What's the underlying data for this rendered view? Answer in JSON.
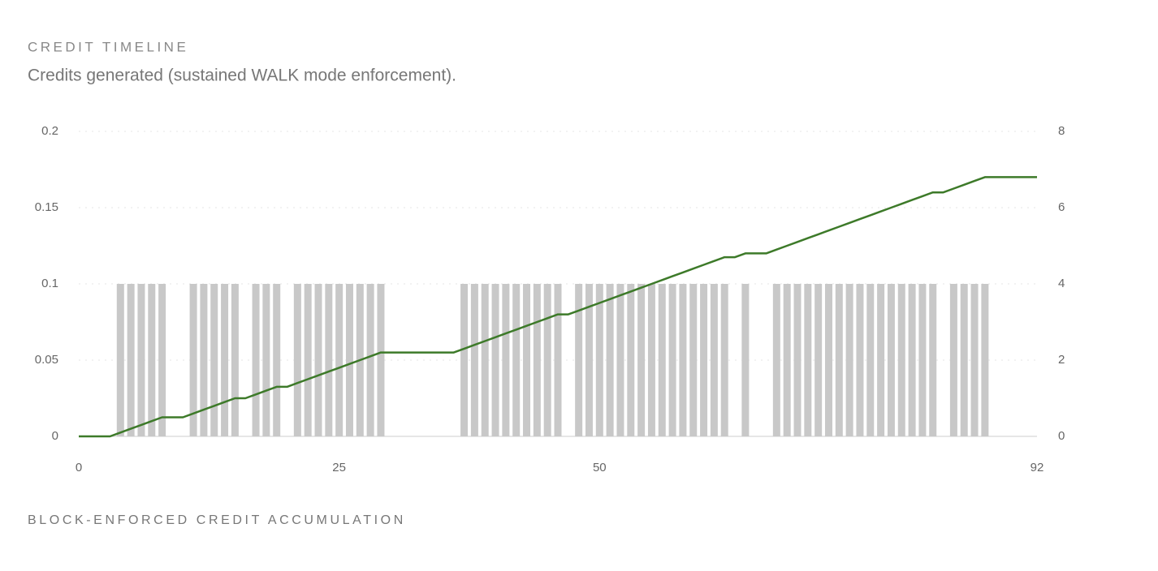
{
  "chart_data": {
    "type": "bar_line",
    "title": "CREDIT TIMELINE",
    "subtitle": "Credits generated (sustained WALK mode enforcement).",
    "caption": "BLOCK-ENFORCED CREDIT ACCUMULATION",
    "x": [
      0,
      1,
      2,
      3,
      4,
      5,
      6,
      7,
      8,
      9,
      10,
      11,
      12,
      13,
      14,
      15,
      16,
      17,
      18,
      19,
      20,
      21,
      22,
      23,
      24,
      25,
      26,
      27,
      28,
      29,
      30,
      31,
      32,
      33,
      34,
      35,
      36,
      37,
      38,
      39,
      40,
      41,
      42,
      43,
      44,
      45,
      46,
      47,
      48,
      49,
      50,
      51,
      52,
      53,
      54,
      55,
      56,
      57,
      58,
      59,
      60,
      61,
      62,
      63,
      64,
      65,
      66,
      67,
      68,
      69,
      70,
      71,
      72,
      73,
      74,
      75,
      76,
      77,
      78,
      79,
      80,
      81,
      82,
      83,
      84,
      85,
      86,
      87,
      88,
      89,
      90,
      91,
      92
    ],
    "series": [
      {
        "type": "bar",
        "color": "#c8c8c8",
        "values": [
          0,
          0,
          0,
          0,
          0.1,
          0.1,
          0.1,
          0.1,
          0.1,
          0,
          0,
          0.1,
          0.1,
          0.1,
          0.1,
          0.1,
          0,
          0.1,
          0.1,
          0.1,
          0,
          0.1,
          0.1,
          0.1,
          0.1,
          0.1,
          0.1,
          0.1,
          0.1,
          0.1,
          0,
          0,
          0,
          0,
          0,
          0,
          0,
          0.1,
          0.1,
          0.1,
          0.1,
          0.1,
          0.1,
          0.1,
          0.1,
          0.1,
          0.1,
          0,
          0.1,
          0.1,
          0.1,
          0.1,
          0.1,
          0.1,
          0.1,
          0.1,
          0.1,
          0.1,
          0.1,
          0.1,
          0.1,
          0.1,
          0.1,
          0,
          0.1,
          0,
          0,
          0.1,
          0.1,
          0.1,
          0.1,
          0.1,
          0.1,
          0.1,
          0.1,
          0.1,
          0.1,
          0.1,
          0.1,
          0.1,
          0.1,
          0.1,
          0.1,
          0,
          0.1,
          0.1,
          0.1,
          0.1,
          0,
          0,
          0,
          0,
          0
        ]
      },
      {
        "type": "line",
        "axis": "y2",
        "color": "#3d7a29",
        "values": [
          0,
          0,
          0,
          0,
          0.1,
          0.2,
          0.3,
          0.4,
          0.5,
          0.5,
          0.5,
          0.6,
          0.7,
          0.8,
          0.9,
          1.0,
          1.0,
          1.1,
          1.2,
          1.3,
          1.3,
          1.4,
          1.5,
          1.6,
          1.7,
          1.8,
          1.9,
          2.0,
          2.1,
          2.2,
          2.2,
          2.2,
          2.2,
          2.2,
          2.2,
          2.2,
          2.2,
          2.3,
          2.4,
          2.5,
          2.6,
          2.7,
          2.8,
          2.9,
          3.0,
          3.1,
          3.2,
          3.2,
          3.3,
          3.4,
          3.5,
          3.6,
          3.7,
          3.8,
          3.9,
          4.0,
          4.1,
          4.2,
          4.3,
          4.4,
          4.5,
          4.6,
          4.7,
          4.7,
          4.8,
          4.8,
          4.8,
          4.9,
          5.0,
          5.1,
          5.2,
          5.3,
          5.4,
          5.5,
          5.6,
          5.7,
          5.8,
          5.9,
          6.0,
          6.1,
          6.2,
          6.3,
          6.4,
          6.4,
          6.5,
          6.6,
          6.7,
          6.8,
          6.8,
          6.8,
          6.8,
          6.8,
          6.8
        ]
      }
    ],
    "xlim": [
      0,
      92
    ],
    "xticks": [
      0,
      25,
      50,
      92
    ],
    "ylim": [
      0,
      0.2
    ],
    "yticks": [
      0,
      0.05,
      0.1,
      0.15,
      0.2
    ],
    "y2lim": [
      0,
      8
    ],
    "y2ticks": [
      0,
      2,
      4,
      6,
      8
    ],
    "grid": true
  }
}
